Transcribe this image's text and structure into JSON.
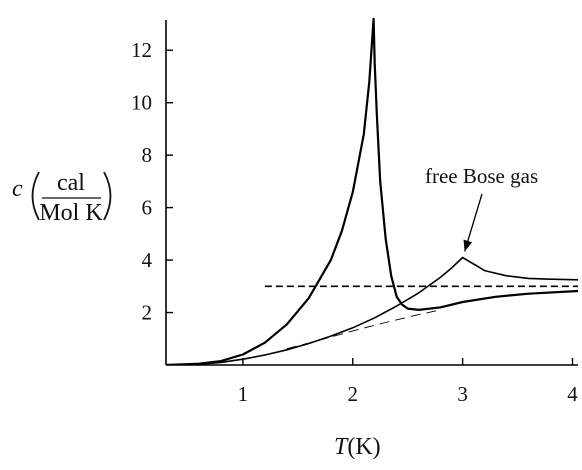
{
  "chart_data": {
    "type": "line",
    "xlabel_var": "T",
    "xlabel_unit": "(K)",
    "ylabel_var": "c",
    "ylabel_unit_num": "cal",
    "ylabel_unit_den": "Mol K",
    "xlim": [
      0.3,
      4.05
    ],
    "ylim": [
      0,
      13
    ],
    "x_ticks": [
      1,
      2,
      3,
      4
    ],
    "x_tick_labels": [
      "1",
      "2",
      "3",
      "4"
    ],
    "y_ticks": [
      2,
      4,
      6,
      8,
      10,
      12
    ],
    "y_tick_labels": [
      "2",
      "4",
      "6",
      "8",
      "10",
      "12"
    ],
    "grid": false,
    "legend": "none",
    "annotation": {
      "text": "free Bose gas",
      "target_x": 3.0,
      "target_y": 4.1
    },
    "series": [
      {
        "style": "solid-bold",
        "points": [
          [
            0.3,
            0
          ],
          [
            0.6,
            0.05
          ],
          [
            0.8,
            0.15
          ],
          [
            1.0,
            0.4
          ],
          [
            1.2,
            0.85
          ],
          [
            1.4,
            1.55
          ],
          [
            1.6,
            2.55
          ],
          [
            1.8,
            4.0
          ],
          [
            1.9,
            5.1
          ],
          [
            2.0,
            6.6
          ],
          [
            2.1,
            8.8
          ],
          [
            2.15,
            10.8
          ],
          [
            2.19,
            13.2
          ],
          [
            2.2,
            11.5
          ],
          [
            2.22,
            9.5
          ],
          [
            2.25,
            7.0
          ],
          [
            2.3,
            4.8
          ],
          [
            2.35,
            3.4
          ],
          [
            2.4,
            2.6
          ],
          [
            2.45,
            2.3
          ],
          [
            2.5,
            2.15
          ],
          [
            2.6,
            2.1
          ],
          [
            2.8,
            2.2
          ],
          [
            3.0,
            2.4
          ],
          [
            3.3,
            2.6
          ],
          [
            3.6,
            2.72
          ],
          [
            4.05,
            2.82
          ]
        ]
      },
      {
        "style": "solid",
        "points": [
          [
            0.3,
            0
          ],
          [
            0.6,
            0.03
          ],
          [
            0.8,
            0.1
          ],
          [
            1.0,
            0.22
          ],
          [
            1.2,
            0.38
          ],
          [
            1.4,
            0.58
          ],
          [
            1.6,
            0.82
          ],
          [
            1.8,
            1.1
          ],
          [
            2.0,
            1.42
          ],
          [
            2.2,
            1.8
          ],
          [
            2.4,
            2.25
          ],
          [
            2.6,
            2.75
          ],
          [
            2.8,
            3.35
          ],
          [
            2.9,
            3.7
          ],
          [
            3.0,
            4.1
          ],
          [
            3.1,
            3.85
          ],
          [
            3.2,
            3.6
          ],
          [
            3.4,
            3.4
          ],
          [
            3.6,
            3.3
          ],
          [
            3.8,
            3.27
          ],
          [
            4.05,
            3.25
          ]
        ]
      },
      {
        "style": "dashed",
        "points": [
          [
            1.2,
            3.0
          ],
          [
            4.05,
            3.0
          ]
        ]
      },
      {
        "style": "dashed-thin",
        "points": [
          [
            1.4,
            0.62
          ],
          [
            1.7,
            0.95
          ],
          [
            2.0,
            1.3
          ],
          [
            2.3,
            1.62
          ],
          [
            2.6,
            1.92
          ],
          [
            2.8,
            2.1
          ]
        ]
      }
    ]
  }
}
